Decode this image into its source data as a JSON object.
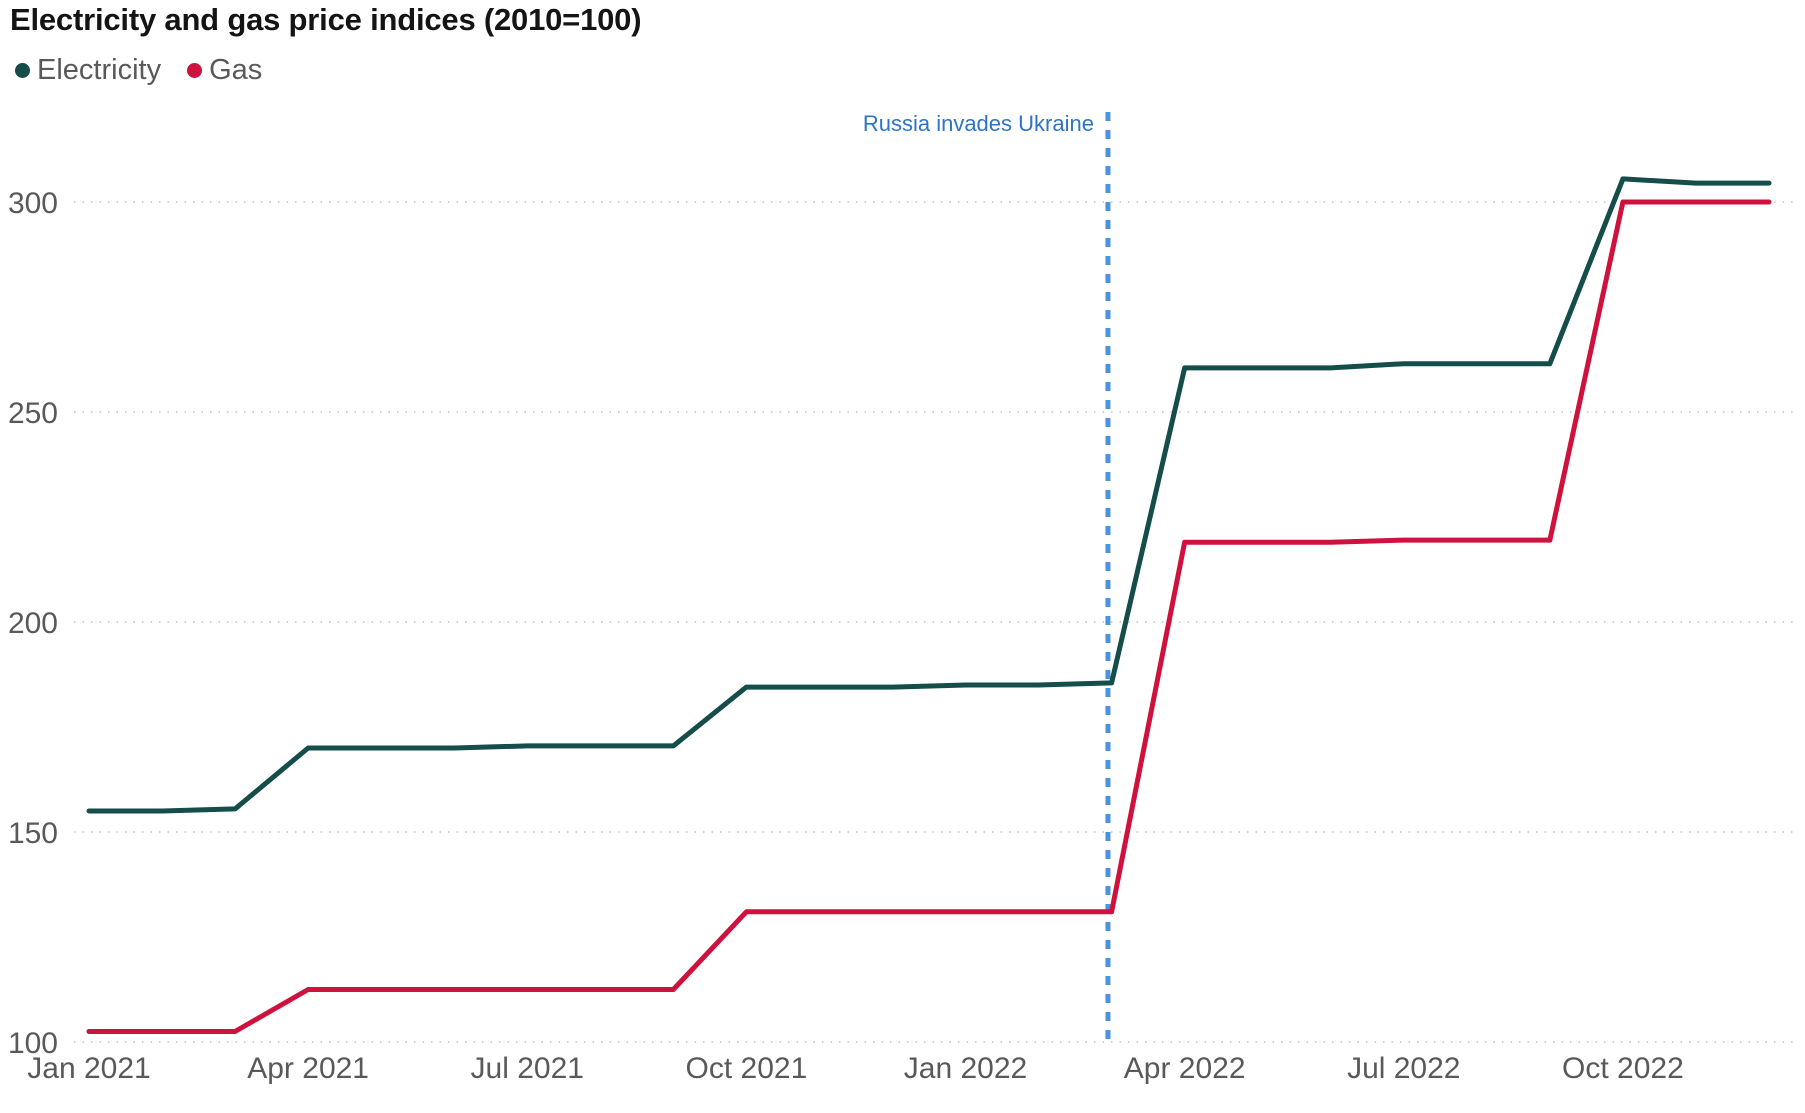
{
  "title": "Electricity and gas price indices (2010=100)",
  "chart_data": {
    "type": "line",
    "title": "Electricity and gas price indices (2010=100)",
    "x": [
      "Jan 2021",
      "Feb 2021",
      "Mar 2021",
      "Apr 2021",
      "May 2021",
      "Jun 2021",
      "Jul 2021",
      "Aug 2021",
      "Sep 2021",
      "Oct 2021",
      "Nov 2021",
      "Dec 2021",
      "Jan 2022",
      "Feb 2022",
      "Mar 2022",
      "Apr 2022",
      "May 2022",
      "Jun 2022",
      "Jul 2022",
      "Aug 2022",
      "Sep 2022",
      "Oct 2022",
      "Nov 2022",
      "Dec 2022"
    ],
    "x_tick_labels": [
      "Jan 2021",
      "Apr 2021",
      "Jul 2021",
      "Oct 2021",
      "Jan 2022",
      "Apr 2022",
      "Jul 2022",
      "Oct 2022"
    ],
    "x_tick_month_indices": [
      0,
      3,
      6,
      9,
      12,
      15,
      18,
      21
    ],
    "y_axis": {
      "min": 100,
      "max": 325,
      "ticks": [
        100,
        150,
        200,
        250,
        300
      ]
    },
    "grid": "dotted horizontal gridlines, no axis lines",
    "legend_position": "top-left",
    "series": [
      {
        "name": "Electricity",
        "color": "#144d4a",
        "values": [
          155,
          155,
          155.5,
          170,
          170,
          170,
          170.5,
          170.5,
          170.5,
          184.5,
          184.5,
          184.5,
          185,
          185,
          185.5,
          260.5,
          260.5,
          260.5,
          261.5,
          261.5,
          261.5,
          305.5,
          304.5,
          304.5
        ]
      },
      {
        "name": "Gas",
        "color": "#cf113e",
        "values": [
          102.5,
          102.5,
          102.5,
          112.5,
          112.5,
          112.5,
          112.5,
          112.5,
          112.5,
          131,
          131,
          131,
          131,
          131,
          131,
          219,
          219,
          219,
          219.5,
          219.5,
          219.5,
          300,
          300,
          300
        ]
      }
    ],
    "annotation": {
      "label": "Russia invades Ukraine",
      "month_index": 13.95,
      "text_color": "#2d74c6",
      "line_color": "#4b93dd"
    }
  },
  "colors": {
    "title_text": "#141414",
    "axis_text": "#595959",
    "gridline": "#d2d2d2",
    "background": "#ffffff"
  }
}
